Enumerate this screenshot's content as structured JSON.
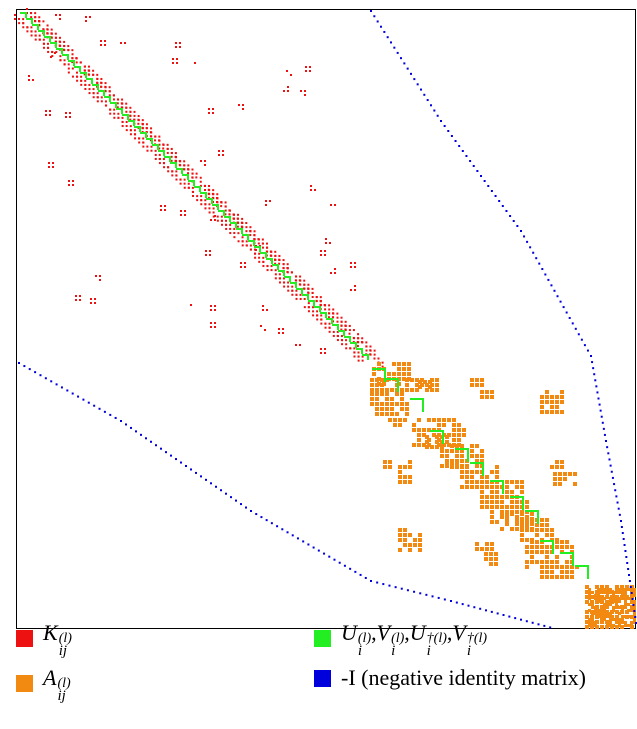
{
  "colors": {
    "K": "#ee1111",
    "A": "#f28a12",
    "U": "#22ee22",
    "I": "#0000dd",
    "frame": "#000000"
  },
  "legend": [
    {
      "key": "K",
      "label_base": "K",
      "label_sup": "(l)",
      "label_sub": "ij"
    },
    {
      "key": "U",
      "label_text": "U(l)i,V(l)i,U†(l)i,V†(l)i"
    },
    {
      "key": "A",
      "label_base": "A",
      "label_sup": "(l)",
      "label_sub": "ij"
    },
    {
      "key": "I",
      "label_text": "-I (negative identity matrix)"
    }
  ],
  "legend_text": {
    "k_base": "K",
    "k_sup": "(l)",
    "k_sub": "ij",
    "a_base": "A",
    "a_sup": "(l)",
    "a_sub": "ij",
    "u_terms": [
      {
        "base": "U",
        "sup": "(l)",
        "sub": "i"
      },
      {
        "base": "V",
        "sup": "(l)",
        "sub": "i"
      },
      {
        "base": "U",
        "sup": "†(l)",
        "sub": "i"
      },
      {
        "base": "V",
        "sup": "†(l)",
        "sub": "i"
      }
    ],
    "u_sep": ",",
    "i_label": "-I (negative identity matrix)"
  },
  "swatch_icons": [
    "red-square-icon",
    "green-square-icon",
    "orange-square-icon",
    "blue-square-icon"
  ]
}
